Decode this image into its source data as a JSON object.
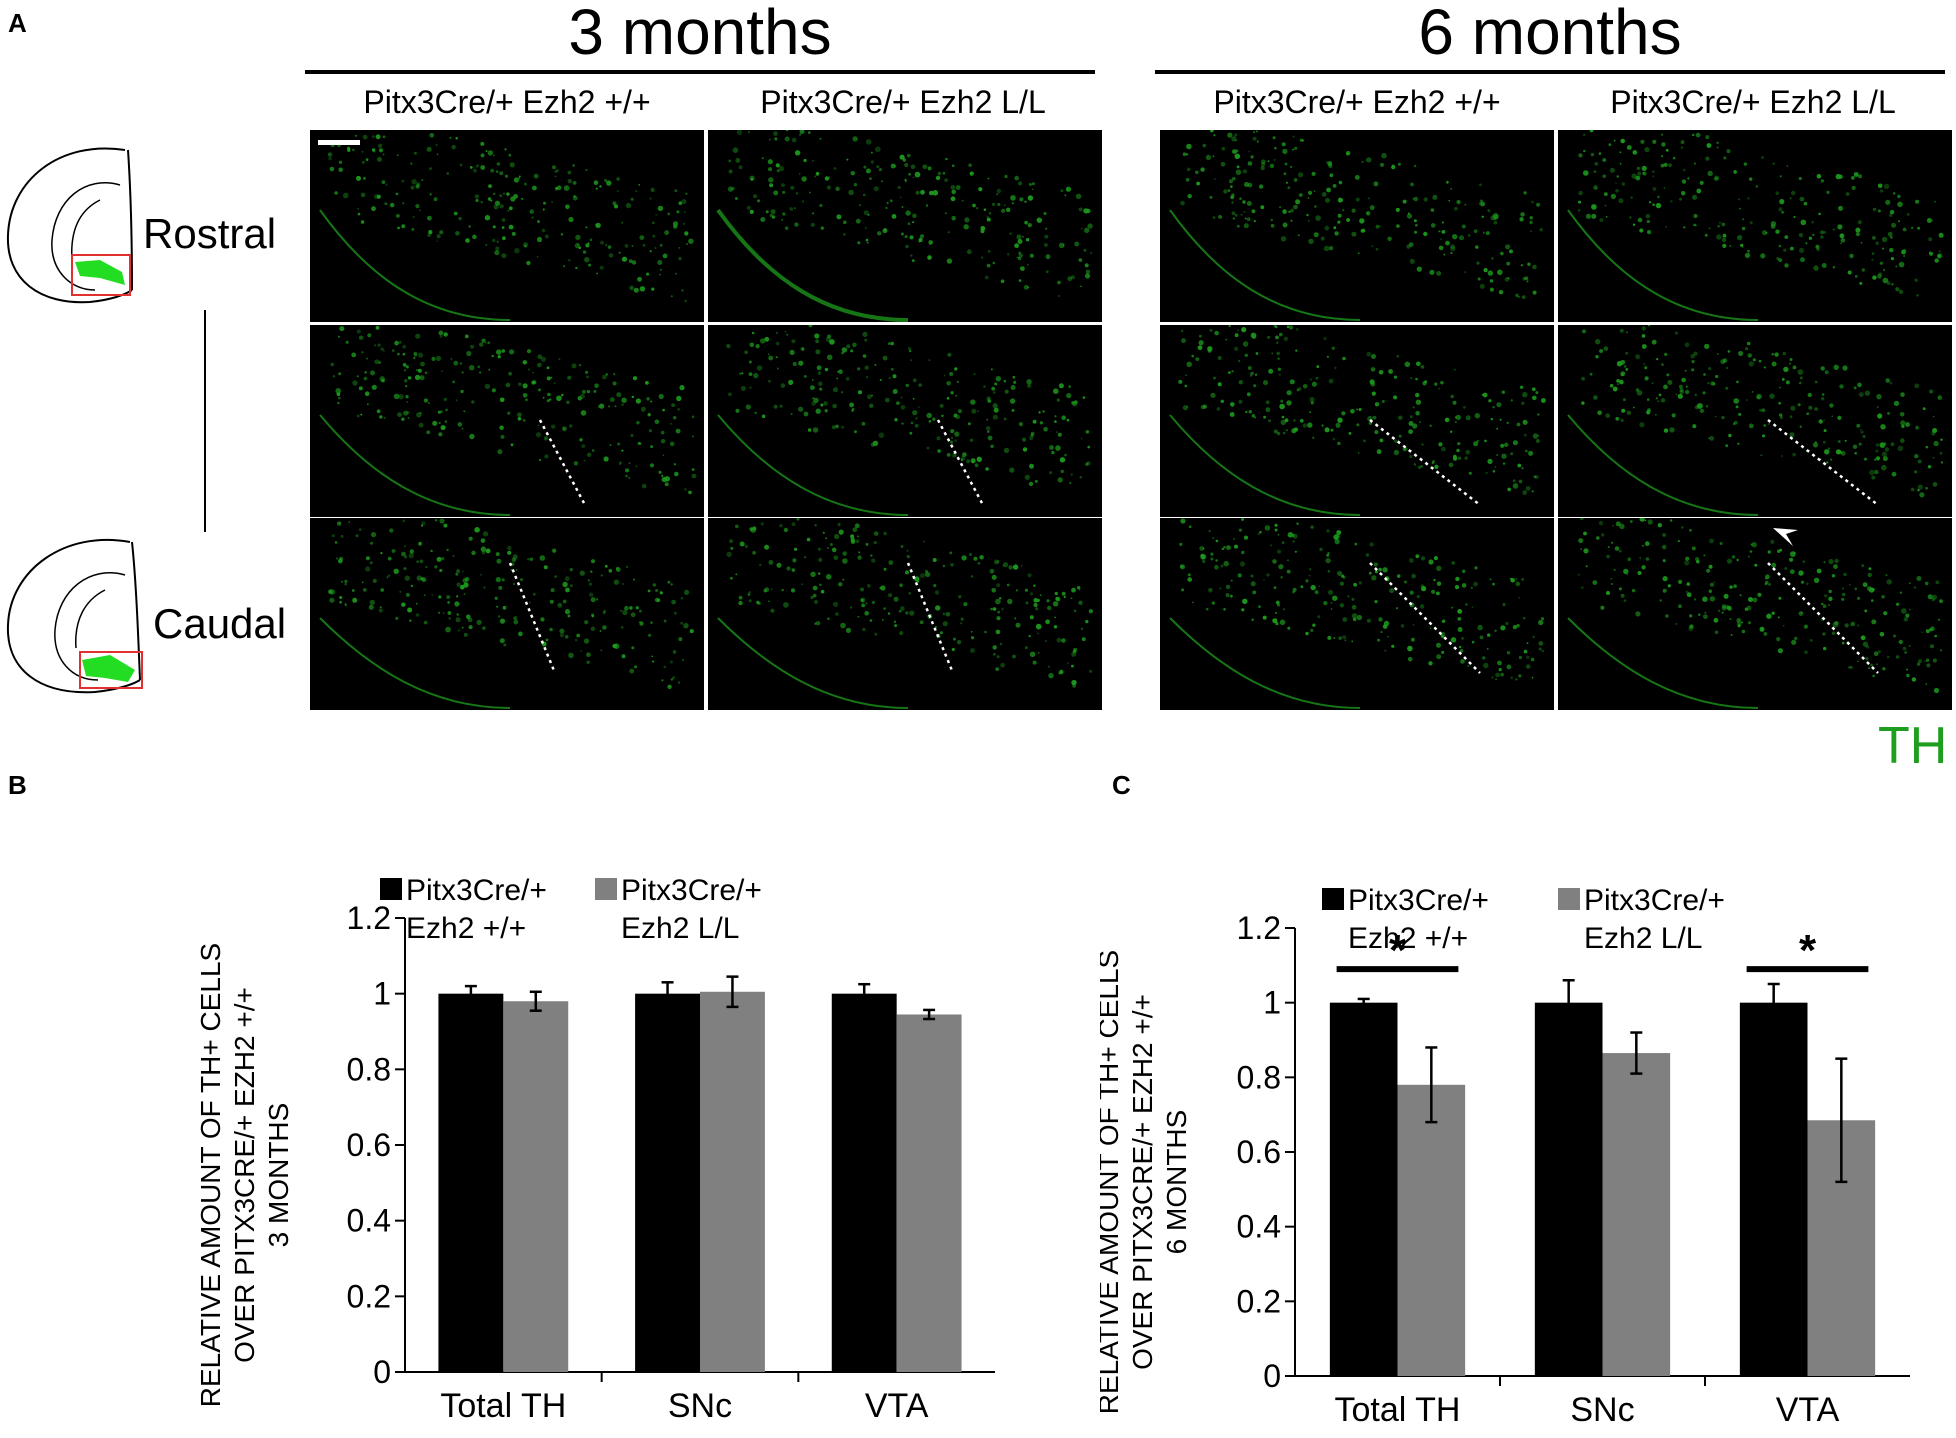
{
  "panel_a": {
    "letter": "A",
    "groups": [
      {
        "title": "3 months",
        "columns": [
          "Pitx3Cre/+ Ezh2 +/+",
          "Pitx3Cre/+ Ezh2 L/L"
        ]
      },
      {
        "title": "6 months",
        "columns": [
          "Pitx3Cre/+ Ezh2 +/+",
          "Pitx3Cre/+ Ezh2 L/L"
        ]
      }
    ],
    "rows": [
      "Rostral",
      "Caudal"
    ],
    "stain": "TH",
    "colors": {
      "stain": "#1e9e1e",
      "background": "#000000",
      "box": "#e03030"
    }
  },
  "chart_data": [
    {
      "type": "bar",
      "panel": "B",
      "categories": [
        "Total TH",
        "SNc",
        "VTA"
      ],
      "series": [
        {
          "name": "Pitx3Cre/+ Ezh2 +/+",
          "values": [
            1.0,
            1.0,
            1.0
          ],
          "errors": [
            0.02,
            0.03,
            0.025
          ],
          "color": "#000000"
        },
        {
          "name": "Pitx3Cre/+ Ezh2 L/L",
          "values": [
            0.98,
            1.005,
            0.945
          ],
          "errors": [
            0.025,
            0.04,
            0.012
          ],
          "color": "#808080"
        }
      ],
      "ylabel_lines": [
        "RELATIVE AMOUNT OF TH+ CELLS",
        "OVER PITX3CRE/+ EZH2 +/+",
        "3 MONTHS"
      ],
      "ylim": [
        0,
        1.2
      ],
      "yticks": [
        "0",
        "0.2",
        "0.4",
        "0.6",
        "0.8",
        "1",
        "1.2"
      ],
      "legend_lines": [
        [
          "Pitx3Cre/+",
          "Ezh2 +/+"
        ],
        [
          "Pitx3Cre/+",
          "Ezh2 L/L"
        ]
      ],
      "legend": "top",
      "grid": false,
      "significance": []
    },
    {
      "type": "bar",
      "panel": "C",
      "categories": [
        "Total TH",
        "SNc",
        "VTA"
      ],
      "series": [
        {
          "name": "Pitx3Cre/+ Ezh2 +/+",
          "values": [
            1.0,
            1.0,
            1.0
          ],
          "errors": [
            0.01,
            0.06,
            0.05
          ],
          "color": "#000000"
        },
        {
          "name": "Pitx3Cre/+ Ezh2 L/L",
          "values": [
            0.78,
            0.865,
            0.685
          ],
          "errors": [
            0.1,
            0.055,
            0.165
          ],
          "color": "#808080"
        }
      ],
      "ylabel_lines": [
        "RELATIVE AMOUNT OF TH+ CELLS",
        "OVER PITX3CRE/+ EZH2 +/+",
        "6 MONTHS"
      ],
      "ylim": [
        0,
        1.2
      ],
      "yticks": [
        "0",
        "0.2",
        "0.4",
        "0.6",
        "0.8",
        "1",
        "1.2"
      ],
      "legend_lines": [
        [
          "Pitx3Cre/+",
          "Ezh2 +/+"
        ],
        [
          "Pitx3Cre/+",
          "Ezh2 L/L"
        ]
      ],
      "legend": "top",
      "grid": false,
      "significance": [
        {
          "category": "Total TH",
          "label": "*"
        },
        {
          "category": "VTA",
          "label": "*"
        }
      ]
    }
  ]
}
